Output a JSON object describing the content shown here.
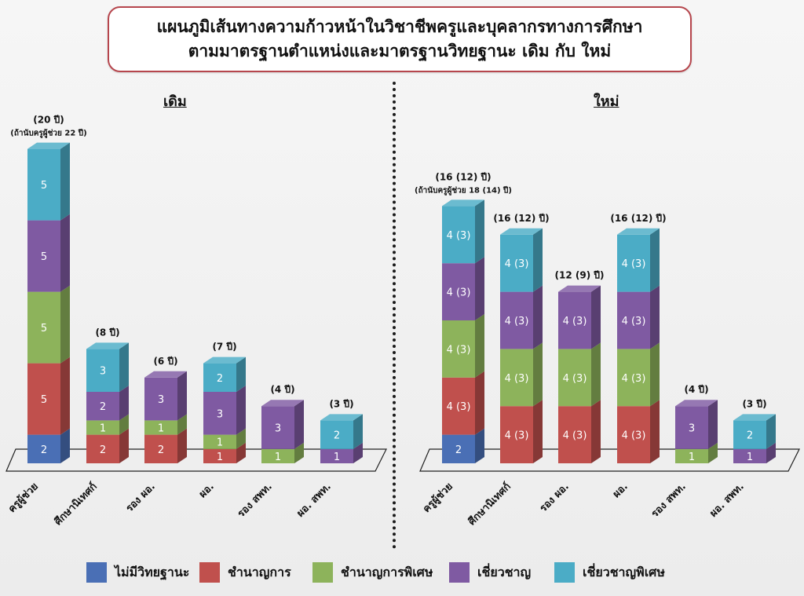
{
  "title": {
    "line1": "แผนภูมิเส้นทางความก้าวหน้าในวิชาชีพครูและบุคลากรทางการศึกษา",
    "line2": "ตามมาตรฐานตำแหน่งและมาตรฐานวิทยฐานะ เดิม กับ ใหม่"
  },
  "chart_data": {
    "type": "bar",
    "stacked": true,
    "colors": {
      "none": "#4a6fb5",
      "chamnan": "#c0504d",
      "chamnan_phiset": "#8db35b",
      "chieochan": "#7f5aa2",
      "chieochan_phiset": "#4bacc6"
    },
    "legend": [
      {
        "key": "none",
        "label": "ไม่มีวิทยฐานะ"
      },
      {
        "key": "chamnan",
        "label": "ชำนาญการ"
      },
      {
        "key": "chamnan_phiset",
        "label": "ชำนาญการพิเศษ"
      },
      {
        "key": "chieochan",
        "label": "เชี่ยวชาญ"
      },
      {
        "key": "chieochan_phiset",
        "label": "เชี่ยวชาญพิเศษ"
      }
    ],
    "panels": [
      {
        "title": "เดิม",
        "categories": [
          "ครูผู้ช่วย",
          "ศึกษานิเทศก์",
          "รอง ผอ.",
          "ผอ.",
          "รอง สพท.",
          "ผอ. สพท."
        ],
        "bars": [
          {
            "category": "ครูผู้ช่วย",
            "top_label": "(20 ปี)",
            "sub_label": "(ถ้านับครูผู้ช่วย 22 ปี)",
            "segments": [
              {
                "key": "none",
                "value": 2,
                "label": "2"
              },
              {
                "key": "chamnan",
                "value": 5,
                "label": "5"
              },
              {
                "key": "chamnan_phiset",
                "value": 5,
                "label": "5"
              },
              {
                "key": "chieochan",
                "value": 5,
                "label": "5"
              },
              {
                "key": "chieochan_phiset",
                "value": 5,
                "label": "5"
              }
            ]
          },
          {
            "category": "ศึกษานิเทศก์",
            "top_label": "(8 ปี)",
            "segments": [
              {
                "key": "chamnan",
                "value": 2,
                "label": "2"
              },
              {
                "key": "chamnan_phiset",
                "value": 1,
                "label": "1"
              },
              {
                "key": "chieochan",
                "value": 2,
                "label": "2"
              },
              {
                "key": "chieochan_phiset",
                "value": 3,
                "label": "3"
              }
            ]
          },
          {
            "category": "รอง ผอ.",
            "top_label": "(6 ปี)",
            "segments": [
              {
                "key": "chamnan",
                "value": 2,
                "label": "2"
              },
              {
                "key": "chamnan_phiset",
                "value": 1,
                "label": "1"
              },
              {
                "key": "chieochan",
                "value": 3,
                "label": "3"
              }
            ]
          },
          {
            "category": "ผอ.",
            "top_label": "(7 ปี)",
            "segments": [
              {
                "key": "chamnan",
                "value": 1,
                "label": "1"
              },
              {
                "key": "chamnan_phiset",
                "value": 1,
                "label": "1"
              },
              {
                "key": "chieochan",
                "value": 3,
                "label": "3"
              },
              {
                "key": "chieochan_phiset",
                "value": 2,
                "label": "2"
              }
            ]
          },
          {
            "category": "รอง สพท.",
            "top_label": "(4 ปี)",
            "segments": [
              {
                "key": "chamnan_phiset",
                "value": 1,
                "label": "1"
              },
              {
                "key": "chieochan",
                "value": 3,
                "label": "3"
              }
            ]
          },
          {
            "category": "ผอ. สพท.",
            "top_label": "(3 ปี)",
            "segments": [
              {
                "key": "chieochan",
                "value": 1,
                "label": "1"
              },
              {
                "key": "chieochan_phiset",
                "value": 2,
                "label": "2"
              }
            ]
          }
        ]
      },
      {
        "title": "ใหม่",
        "categories": [
          "ครูผู้ช่วย",
          "ศึกษานิเทศก์",
          "รอง ผอ.",
          "ผอ.",
          "รอง สพท.",
          "ผอ. สพท."
        ],
        "bars": [
          {
            "category": "ครูผู้ช่วย",
            "top_label": "(16 (12) ปี)",
            "sub_label": "(ถ้านับครูผู้ช่วย 18 (14) ปี)",
            "segments": [
              {
                "key": "none",
                "value": 2,
                "label": "2"
              },
              {
                "key": "chamnan",
                "value": 4,
                "label": "4 (3)"
              },
              {
                "key": "chamnan_phiset",
                "value": 4,
                "label": "4 (3)"
              },
              {
                "key": "chieochan",
                "value": 4,
                "label": "4 (3)"
              },
              {
                "key": "chieochan_phiset",
                "value": 4,
                "label": "4 (3)"
              }
            ]
          },
          {
            "category": "ศึกษานิเทศก์",
            "top_label": "(16 (12) ปี)",
            "segments": [
              {
                "key": "chamnan",
                "value": 4,
                "label": "4 (3)"
              },
              {
                "key": "chamnan_phiset",
                "value": 4,
                "label": "4 (3)"
              },
              {
                "key": "chieochan",
                "value": 4,
                "label": "4 (3)"
              },
              {
                "key": "chieochan_phiset",
                "value": 4,
                "label": "4 (3)"
              }
            ]
          },
          {
            "category": "รอง ผอ.",
            "top_label": "(12 (9) ปี)",
            "segments": [
              {
                "key": "chamnan",
                "value": 4,
                "label": "4 (3)"
              },
              {
                "key": "chamnan_phiset",
                "value": 4,
                "label": "4 (3)"
              },
              {
                "key": "chieochan",
                "value": 4,
                "label": "4 (3)"
              }
            ]
          },
          {
            "category": "ผอ.",
            "top_label": "(16 (12) ปี)",
            "segments": [
              {
                "key": "chamnan",
                "value": 4,
                "label": "4 (3)"
              },
              {
                "key": "chamnan_phiset",
                "value": 4,
                "label": "4 (3)"
              },
              {
                "key": "chieochan",
                "value": 4,
                "label": "4 (3)"
              },
              {
                "key": "chieochan_phiset",
                "value": 4,
                "label": "4 (3)"
              }
            ]
          },
          {
            "category": "รอง สพท.",
            "top_label": "(4 ปี)",
            "segments": [
              {
                "key": "chamnan_phiset",
                "value": 1,
                "label": "1"
              },
              {
                "key": "chieochan",
                "value": 3,
                "label": "3"
              }
            ]
          },
          {
            "category": "ผอ. สพท.",
            "top_label": "(3 ปี)",
            "segments": [
              {
                "key": "chieochan",
                "value": 1,
                "label": "1"
              },
              {
                "key": "chieochan_phiset",
                "value": 2,
                "label": "2"
              }
            ]
          }
        ]
      }
    ]
  }
}
